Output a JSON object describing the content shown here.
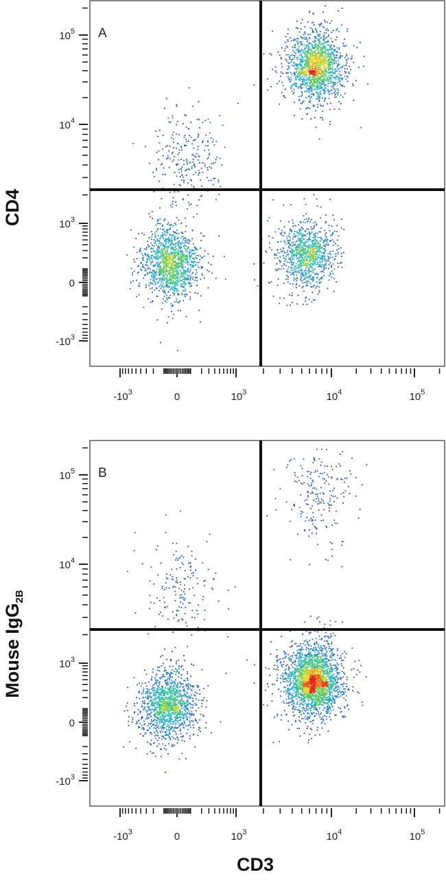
{
  "figure": {
    "y_label_a": "CD4",
    "y_label_b_main": "Mouse IgG",
    "y_label_b_sub": "2B",
    "x_label": "CD3"
  },
  "chart_data": [
    {
      "type": "scatter",
      "panel": "A",
      "xlabel": "CD3",
      "ylabel": "CD4",
      "x_scale": "biexponential",
      "y_scale": "biexponential",
      "x_ticks": [
        {
          "value": -1000,
          "base": "-10",
          "exp": "3"
        },
        {
          "value": 0,
          "base": "0",
          "exp": ""
        },
        {
          "value": 1000,
          "base": "10",
          "exp": "3"
        },
        {
          "value": 10000,
          "base": "10",
          "exp": "4"
        },
        {
          "value": 100000,
          "base": "10",
          "exp": "5"
        }
      ],
      "y_ticks": [
        {
          "value": -1000,
          "base": "-10",
          "exp": "3"
        },
        {
          "value": 0,
          "base": "0",
          "exp": ""
        },
        {
          "value": 1000,
          "base": "10",
          "exp": "3"
        },
        {
          "value": 10000,
          "base": "10",
          "exp": "4"
        },
        {
          "value": 100000,
          "base": "10",
          "exp": "5"
        }
      ],
      "quadrant_gate": {
        "x": 1900,
        "y": 2000
      },
      "populations": [
        {
          "name": "CD3- CD4-",
          "x_center": -40,
          "y_center": 150,
          "weight": 0.32
        },
        {
          "name": "CD3+ CD4+",
          "x_center": 7000,
          "y_center": 45000,
          "weight": 0.38
        },
        {
          "name": "CD3+ CD4-",
          "x_center": 5500,
          "y_center": 250,
          "weight": 0.24
        },
        {
          "name": "CD3- CD4+",
          "x_center": 60,
          "y_center": 4500,
          "weight": 0.06
        }
      ]
    },
    {
      "type": "scatter",
      "panel": "B",
      "xlabel": "CD3",
      "ylabel": "Mouse IgG2B",
      "x_scale": "biexponential",
      "y_scale": "biexponential",
      "x_ticks": [
        {
          "value": -1000,
          "base": "-10",
          "exp": "3"
        },
        {
          "value": 0,
          "base": "0",
          "exp": ""
        },
        {
          "value": 1000,
          "base": "10",
          "exp": "3"
        },
        {
          "value": 10000,
          "base": "10",
          "exp": "4"
        },
        {
          "value": 100000,
          "base": "10",
          "exp": "5"
        }
      ],
      "y_ticks": [
        {
          "value": -1000,
          "base": "-10",
          "exp": "3"
        },
        {
          "value": 0,
          "base": "0",
          "exp": ""
        },
        {
          "value": 1000,
          "base": "10",
          "exp": "3"
        },
        {
          "value": 10000,
          "base": "10",
          "exp": "4"
        },
        {
          "value": 100000,
          "base": "10",
          "exp": "5"
        }
      ],
      "quadrant_gate": {
        "x": 1900,
        "y": 2000
      },
      "populations": [
        {
          "name": "CD3- IgG2B-",
          "x_center": -60,
          "y_center": 120,
          "weight": 0.33
        },
        {
          "name": "CD3+ IgG2B-",
          "x_center": 6500,
          "y_center": 500,
          "weight": 0.58
        },
        {
          "name": "CD3+ IgG2B+",
          "x_center": 7000,
          "y_center": 60000,
          "weight": 0.05
        },
        {
          "name": "CD3- IgG2B+",
          "x_center": 20,
          "y_center": 6000,
          "weight": 0.04
        }
      ]
    }
  ]
}
